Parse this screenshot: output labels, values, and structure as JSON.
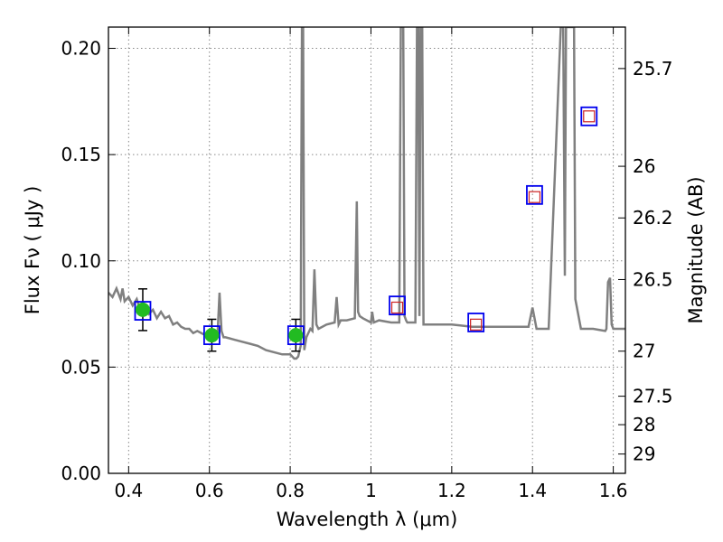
{
  "chart_data": {
    "type": "line",
    "title": "",
    "xlabel": "Wavelength  λ (μm)",
    "ylabel": "Flux  Fν  ( μJy )",
    "y2label": "Magnitude (AB)",
    "xlim": [
      0.35,
      1.63
    ],
    "ylim": [
      0.0,
      0.21
    ],
    "x_ticks": [
      0.4,
      0.6,
      0.8,
      1.0,
      1.2,
      1.4,
      1.6
    ],
    "x_tick_labels": [
      "0.4",
      "0.6",
      "0.8",
      "1",
      "1.2",
      "1.4",
      "1.6"
    ],
    "y_ticks": [
      0.0,
      0.05,
      0.1,
      0.15,
      0.2
    ],
    "y_tick_labels": [
      "0.00",
      "0.05",
      "0.10",
      "0.15",
      "0.20"
    ],
    "y2_ticks": [
      {
        "flux": 0.1905,
        "label": "25.7"
      },
      {
        "flux": 0.1445,
        "label": "26"
      },
      {
        "flux": 0.1202,
        "label": "26.2"
      },
      {
        "flux": 0.0912,
        "label": "26.5"
      },
      {
        "flux": 0.0575,
        "label": "27"
      },
      {
        "flux": 0.0363,
        "label": "27.5"
      },
      {
        "flux": 0.0229,
        "label": "28"
      },
      {
        "flux": 0.0091,
        "label": "29"
      }
    ],
    "grid": true,
    "colors": {
      "spectrum": "#808080",
      "detection_fill": "#22bb22",
      "model_box": "#0000ee",
      "photometry_box": "#cc2222",
      "errorbar": "#000000",
      "grid": "#888888"
    },
    "series": [
      {
        "role": "model_spectrum",
        "x": [
          0.35,
          0.36,
          0.37,
          0.38,
          0.385,
          0.39,
          0.4,
          0.41,
          0.42,
          0.43,
          0.44,
          0.45,
          0.46,
          0.47,
          0.48,
          0.49,
          0.5,
          0.51,
          0.52,
          0.53,
          0.54,
          0.55,
          0.56,
          0.57,
          0.58,
          0.59,
          0.6,
          0.61,
          0.62,
          0.625,
          0.63,
          0.635,
          0.64,
          0.66,
          0.68,
          0.7,
          0.72,
          0.74,
          0.76,
          0.78,
          0.8,
          0.81,
          0.815,
          0.82,
          0.826,
          0.829,
          0.832,
          0.835,
          0.84,
          0.85,
          0.855,
          0.86,
          0.865,
          0.87,
          0.89,
          0.91,
          0.915,
          0.92,
          0.925,
          0.94,
          0.96,
          0.965,
          0.968,
          0.972,
          0.98,
          1.0,
          1.003,
          1.007,
          1.02,
          1.05,
          1.07,
          1.074,
          1.077,
          1.08,
          1.083,
          1.087,
          1.09,
          1.1,
          1.11,
          1.114,
          1.117,
          1.12,
          1.123,
          1.127,
          1.13,
          1.15,
          1.2,
          1.25,
          1.28,
          1.3,
          1.33,
          1.36,
          1.39,
          1.4,
          1.41,
          1.42,
          1.44,
          1.47,
          1.473,
          1.476,
          1.48,
          1.483,
          1.487,
          1.492,
          1.497,
          1.5,
          1.503,
          1.506,
          1.52,
          1.55,
          1.58,
          1.583,
          1.587,
          1.592,
          1.596,
          1.6,
          1.63
        ],
        "y": [
          0.085,
          0.083,
          0.087,
          0.082,
          0.087,
          0.081,
          0.083,
          0.079,
          0.082,
          0.076,
          0.079,
          0.075,
          0.077,
          0.073,
          0.076,
          0.073,
          0.074,
          0.07,
          0.071,
          0.069,
          0.068,
          0.068,
          0.066,
          0.067,
          0.066,
          0.065,
          0.066,
          0.064,
          0.065,
          0.085,
          0.067,
          0.064,
          0.064,
          0.063,
          0.062,
          0.061,
          0.06,
          0.058,
          0.057,
          0.056,
          0.056,
          0.054,
          0.054,
          0.055,
          0.06,
          0.21,
          0.21,
          0.058,
          0.064,
          0.068,
          0.067,
          0.096,
          0.07,
          0.068,
          0.07,
          0.071,
          0.083,
          0.07,
          0.072,
          0.072,
          0.073,
          0.128,
          0.076,
          0.074,
          0.073,
          0.071,
          0.076,
          0.071,
          0.072,
          0.071,
          0.071,
          0.21,
          0.21,
          0.21,
          0.074,
          0.072,
          0.071,
          0.071,
          0.071,
          0.21,
          0.21,
          0.074,
          0.21,
          0.21,
          0.07,
          0.07,
          0.07,
          0.069,
          0.069,
          0.069,
          0.069,
          0.069,
          0.069,
          0.078,
          0.068,
          0.068,
          0.068,
          0.21,
          0.21,
          0.21,
          0.093,
          0.21,
          0.21,
          0.21,
          0.21,
          0.21,
          0.21,
          0.082,
          0.068,
          0.068,
          0.067,
          0.068,
          0.09,
          0.092,
          0.07,
          0.068,
          0.068
        ]
      },
      {
        "role": "measured_flux",
        "x": [
          0.435,
          0.606,
          0.814
        ],
        "y": [
          0.077,
          0.065,
          0.065
        ],
        "yerr": [
          0.0098,
          0.0075,
          0.0075
        ]
      },
      {
        "role": "model_band_flux",
        "x": [
          0.435,
          0.606,
          0.814,
          1.065,
          1.26,
          1.405,
          1.54
        ],
        "y": [
          0.0765,
          0.065,
          0.065,
          0.079,
          0.071,
          0.131,
          0.168
        ]
      },
      {
        "role": "photometry_limits",
        "x": [
          1.065,
          1.26,
          1.405,
          1.54
        ],
        "y": [
          0.078,
          0.07,
          0.13,
          0.168
        ]
      }
    ]
  }
}
